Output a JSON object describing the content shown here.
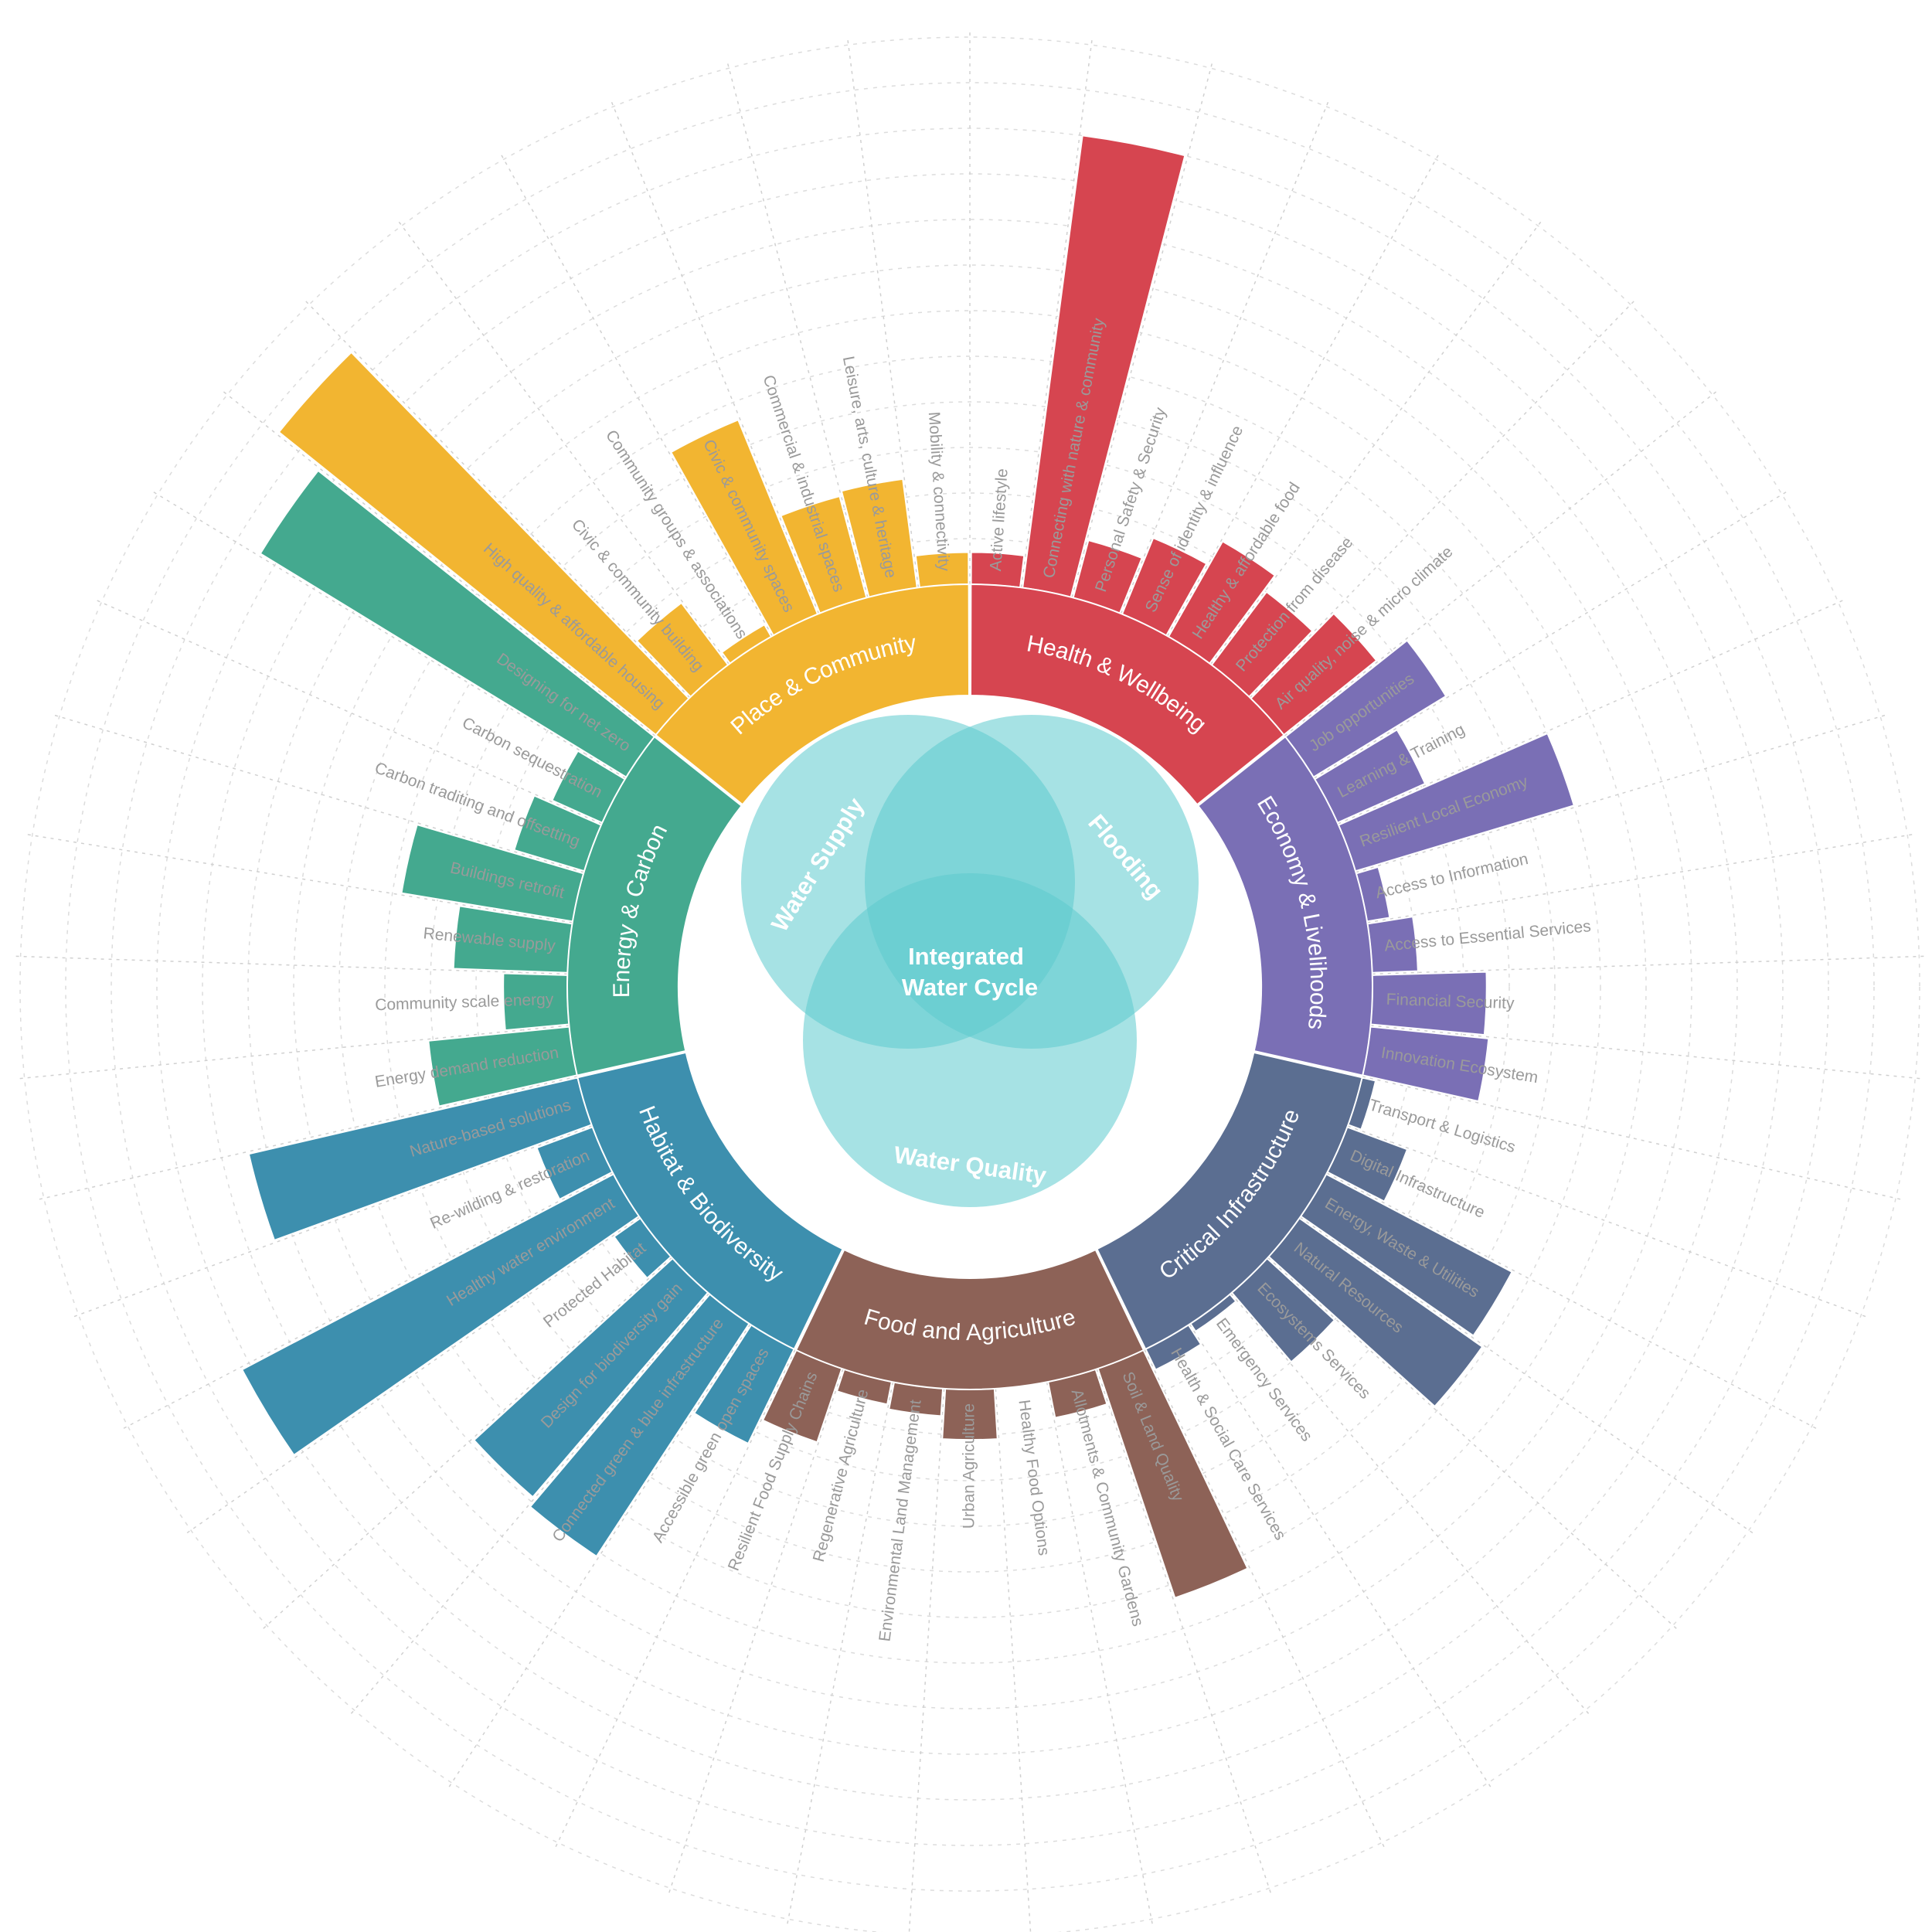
{
  "chart_data": {
    "type": "radial_bar",
    "center_label": [
      "Integrated",
      "Water Cycle"
    ],
    "venn_labels": [
      "Water Supply",
      "Flooding",
      "Water Quality"
    ],
    "ylim": [
      0,
      11
    ],
    "grid": true,
    "groups": [
      {
        "name": "Health & Wellbeing",
        "color": "#d64550",
        "categories": [
          "Active lifestyle",
          "Connecting with nature & community",
          "Personal Safety & Security",
          "Sense of identity & influence",
          "Healthy & affordable food",
          "Protection from disease",
          "Air quality, noise & micro climate"
        ],
        "values": [
          0.7,
          10,
          1.3,
          1.8,
          2.4,
          2,
          2.6
        ]
      },
      {
        "name": "Economy & Livelihoods",
        "color": "#7a6fb5",
        "categories": [
          "Job opportunities",
          "Learning & Training",
          "Resilient Local Economy",
          "Access to Information",
          "Access to Essential Services",
          "Financial Security",
          "Innovation Ecosystem"
        ],
        "values": [
          3.4,
          2.1,
          5,
          0.5,
          1,
          2.5,
          2.6
        ]
      },
      {
        "name": "Critical Infrastructure",
        "color": "#5b6e91",
        "categories": [
          "Transport & Logistics",
          "Digital Infrastructure",
          "Energy, Waste & Utilities",
          "Natural Resources",
          "Ecosystems Services",
          "Emergency Services",
          "Health & Social Care Services"
        ],
        "values": [
          0.3,
          1.4,
          4.6,
          4.9,
          2,
          0.2,
          0.5
        ]
      },
      {
        "name": "Food and Agriculture",
        "color": "#8d6257",
        "categories": [
          "Soil & Land Quality",
          "Allotments & Community Gardens",
          "Healthy Food Options",
          "Urban Agriculture",
          "Environmental Land Management",
          "Regenerative Agriculture",
          "Resilient Food Supply Chains"
        ],
        "values": [
          5.3,
          0.8,
          0,
          1.1,
          0.6,
          0.5,
          1.7
        ]
      },
      {
        "name": "Habitat & Biodiversity",
        "color": "#3d8fae",
        "categories": [
          "Accessible green open spaces",
          "Connected green & blue infrastructure",
          "Design for biodiversity gain",
          "Protected Habitat",
          "Healthy water environment",
          "Re-wilding & restoration",
          "Nature-based solutions"
        ],
        "values": [
          2.3,
          6.1,
          5.9,
          0.7,
          9.2,
          1.3,
          7.4
        ]
      },
      {
        "name": "Energy & Carbon",
        "color": "#44a98f",
        "categories": [
          "Energy demand reduction",
          "Community scale energy",
          "Renewable supply",
          "Buildings retrofit",
          "Carbon traditing and offsetting",
          "Carbon sequestration",
          "Designing for net zero"
        ],
        "values": [
          3.1,
          1.4,
          2.5,
          3.8,
          1.6,
          1.2,
          9.4
        ]
      },
      {
        "name": "Place & Community",
        "color": "#f2b531",
        "categories": [
          "High quality & affordable housing",
          "Civic & community building",
          "Community groups & associations",
          "Civic & community spaces",
          "Commercial & industrial spaces",
          "Leisure, arts, culture & heritage",
          "Mobility & connectivity"
        ],
        "values": [
          10.6,
          1.7,
          0.3,
          4.6,
          2.3,
          2.4,
          0.7
        ]
      }
    ]
  }
}
